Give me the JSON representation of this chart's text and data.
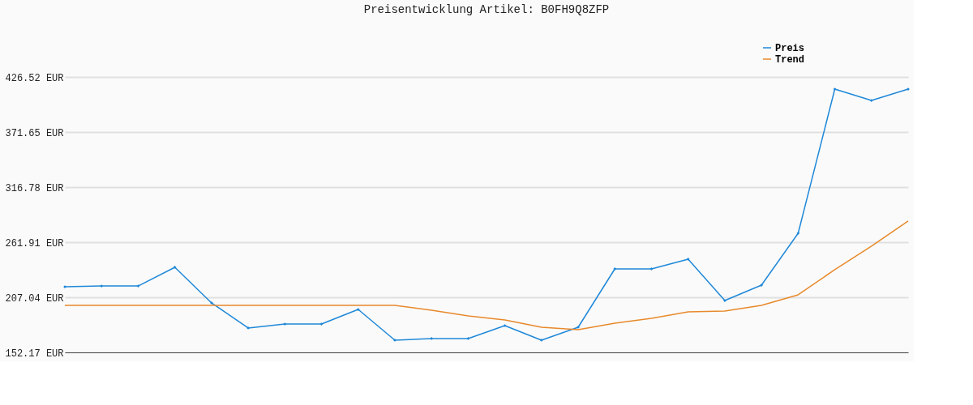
{
  "chart_data": {
    "type": "line",
    "title": "Preisentwicklung Artikel: B0FH9Q8ZFP",
    "categories": [
      null,
      null,
      null,
      null,
      null,
      null,
      null,
      null,
      null,
      null,
      null,
      null,
      null,
      null,
      null,
      null,
      null,
      null,
      null,
      null,
      null,
      null,
      null,
      null
    ],
    "series": [
      {
        "name": "Preis",
        "color": "#1f88d8",
        "marker": "diamond",
        "values": [
          217.5,
          218.3,
          218.3,
          236.9,
          201.4,
          176.4,
          180.4,
          180.4,
          194.9,
          164.3,
          165.9,
          165.9,
          178.8,
          164.3,
          177.2,
          235.3,
          235.3,
          245.0,
          203.8,
          219.1,
          270.8,
          414.4,
          403.1,
          414.4
        ]
      },
      {
        "name": "Trend",
        "color": "#e8892b",
        "marker": "none",
        "values": [
          199.0,
          199.0,
          199.0,
          199.0,
          199.0,
          199.0,
          199.0,
          199.0,
          199.0,
          199.0,
          194.1,
          188.5,
          184.5,
          177.2,
          174.8,
          181.2,
          186.1,
          192.5,
          193.3,
          199.0,
          209.5,
          234.5,
          257.9,
          282.9
        ]
      }
    ],
    "ylim": [
      152.17,
      426.52
    ],
    "yticks": [
      {
        "value": 152.17,
        "label": "152.17 EUR"
      },
      {
        "value": 207.04,
        "label": "207.04 EUR"
      },
      {
        "value": 261.91,
        "label": "261.91 EUR"
      },
      {
        "value": 316.78,
        "label": "316.78 EUR"
      },
      {
        "value": 371.65,
        "label": "371.65 EUR"
      },
      {
        "value": 426.52,
        "label": "426.52 EUR"
      }
    ],
    "grid": "y",
    "legend": "top right",
    "tick_labels": "y",
    "line_style": "solid"
  }
}
